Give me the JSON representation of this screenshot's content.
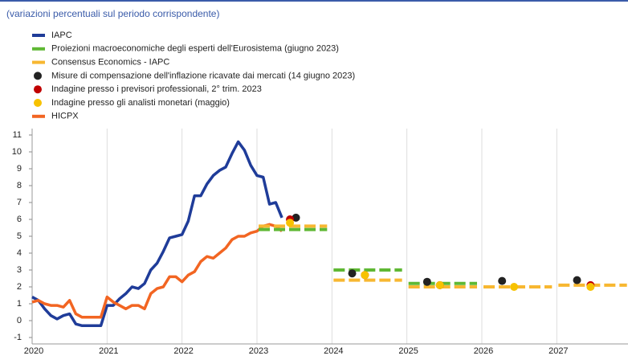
{
  "chart_data": {
    "type": "line",
    "subtitle": "(variazioni percentuali sul periodo corrispondente)",
    "xlim": [
      2020,
      2027.95
    ],
    "xticks": [
      2020,
      2021,
      2022,
      2023,
      2024,
      2025,
      2026,
      2027
    ],
    "ylim": [
      -1,
      11
    ],
    "yticks": [
      -1,
      0,
      1,
      2,
      3,
      4,
      5,
      6,
      7,
      8,
      9,
      10,
      11
    ],
    "grid": "x",
    "series": [
      {
        "name": "IAPC",
        "color": "#1f3c99",
        "mark": "line",
        "x": [
          2020,
          2020.083,
          2020.167,
          2020.25,
          2020.333,
          2020.417,
          2020.5,
          2020.583,
          2020.667,
          2020.75,
          2020.833,
          2020.917,
          2021,
          2021.083,
          2021.167,
          2021.25,
          2021.333,
          2021.417,
          2021.5,
          2021.583,
          2021.667,
          2021.75,
          2021.833,
          2021.917,
          2022,
          2022.083,
          2022.167,
          2022.25,
          2022.333,
          2022.417,
          2022.5,
          2022.583,
          2022.667,
          2022.75,
          2022.833,
          2022.917,
          2023,
          2023.083,
          2023.167,
          2023.25,
          2023.333
        ],
        "values": [
          1.4,
          1.2,
          0.7,
          0.3,
          0.1,
          0.3,
          0.4,
          -0.2,
          -0.3,
          -0.3,
          -0.3,
          -0.3,
          0.9,
          0.9,
          1.3,
          1.6,
          2.0,
          1.9,
          2.2,
          3.0,
          3.4,
          4.1,
          4.9,
          5.0,
          5.1,
          5.9,
          7.4,
          7.4,
          8.1,
          8.6,
          8.9,
          9.1,
          9.9,
          10.6,
          10.1,
          9.2,
          8.6,
          8.5,
          6.9,
          7.0,
          6.1
        ]
      },
      {
        "name": "Proiezioni macroeconomiche degli esperti dell'Eurosistema (giugno 2023)",
        "color": "#5fb834",
        "mark": "dashed",
        "x": [
          2023,
          2024,
          2025
        ],
        "values": [
          5.4,
          3.0,
          2.2
        ]
      },
      {
        "name": "Consensus Economics - IAPC",
        "color": "#f7b731",
        "mark": "dashed",
        "x": [
          2023,
          2024,
          2025,
          2026,
          2027
        ],
        "values": [
          5.6,
          2.4,
          2.0,
          2.0,
          2.1
        ]
      },
      {
        "name": "Misure di compensazione dell'inflazione ricavate dai mercati (14 giugno 2023)",
        "color": "#222222",
        "mark": "dot",
        "x": [
          2023.52,
          2024.27,
          2025.27,
          2026.27,
          2027.27
        ],
        "values": [
          6.1,
          2.8,
          2.3,
          2.35,
          2.4
        ]
      },
      {
        "name": "Indagine presso i previsori professionali, 2° trim. 2023",
        "color": "#c00000",
        "mark": "dot",
        "x": [
          2023.44,
          2024.44,
          2025.44,
          2027.45
        ],
        "values": [
          6.0,
          2.7,
          2.1,
          2.1
        ]
      },
      {
        "name": "Indagine presso gli analisti monetari (maggio)",
        "color": "#f7c200",
        "mark": "dot",
        "x": [
          2023.44,
          2024.44,
          2025.44,
          2026.43,
          2027.45
        ],
        "values": [
          5.8,
          2.7,
          2.1,
          2.0,
          2.0
        ]
      },
      {
        "name": "HICPX",
        "color": "#f26522",
        "mark": "line",
        "x": [
          2020,
          2020.083,
          2020.167,
          2020.25,
          2020.333,
          2020.417,
          2020.5,
          2020.583,
          2020.667,
          2020.75,
          2020.833,
          2020.917,
          2021,
          2021.083,
          2021.167,
          2021.25,
          2021.333,
          2021.417,
          2021.5,
          2021.583,
          2021.667,
          2021.75,
          2021.833,
          2021.917,
          2022,
          2022.083,
          2022.167,
          2022.25,
          2022.333,
          2022.417,
          2022.5,
          2022.583,
          2022.667,
          2022.75,
          2022.833,
          2022.917,
          2023,
          2023.083,
          2023.167,
          2023.25,
          2023.333
        ],
        "values": [
          1.1,
          1.2,
          1.0,
          0.9,
          0.9,
          0.8,
          1.2,
          0.4,
          0.2,
          0.2,
          0.2,
          0.2,
          1.4,
          1.1,
          0.9,
          0.7,
          0.9,
          0.9,
          0.7,
          1.6,
          1.9,
          2.0,
          2.6,
          2.6,
          2.3,
          2.7,
          2.9,
          3.5,
          3.8,
          3.7,
          4.0,
          4.3,
          4.8,
          5.0,
          5.0,
          5.2,
          5.3,
          5.6,
          5.7,
          5.6,
          5.3
        ]
      }
    ]
  }
}
